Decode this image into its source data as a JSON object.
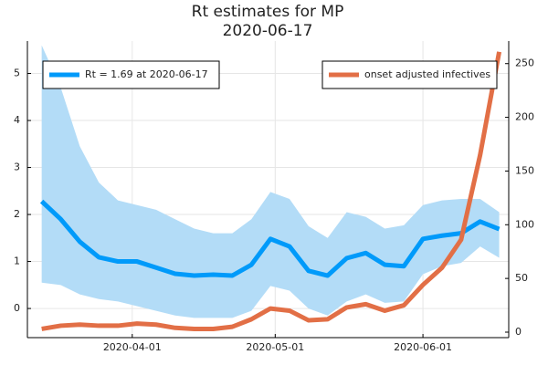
{
  "chart_data": {
    "type": "line",
    "title": "Rt estimates for MP",
    "subtitle": "2020-06-17",
    "x": [
      "2020-03-13",
      "2020-03-17",
      "2020-03-21",
      "2020-03-25",
      "2020-03-29",
      "2020-04-02",
      "2020-04-06",
      "2020-04-10",
      "2020-04-14",
      "2020-04-18",
      "2020-04-22",
      "2020-04-26",
      "2020-04-30",
      "2020-05-04",
      "2020-05-08",
      "2020-05-12",
      "2020-05-16",
      "2020-05-20",
      "2020-05-24",
      "2020-05-28",
      "2020-06-01",
      "2020-06-05",
      "2020-06-09",
      "2020-06-13",
      "2020-06-17"
    ],
    "band": {
      "color": "#b3dcf7",
      "upper": [
        5.6,
        4.7,
        3.45,
        2.68,
        2.3,
        2.2,
        2.1,
        1.9,
        1.7,
        1.6,
        1.6,
        1.9,
        2.48,
        2.33,
        1.75,
        1.5,
        2.05,
        1.95,
        1.7,
        1.77,
        2.2,
        2.3,
        2.33,
        2.33,
        2.05
      ],
      "lower": [
        0.55,
        0.5,
        0.3,
        0.2,
        0.15,
        0.05,
        -0.05,
        -0.15,
        -0.2,
        -0.2,
        -0.2,
        -0.05,
        0.48,
        0.38,
        0,
        -0.15,
        0.15,
        0.3,
        0.12,
        0.15,
        0.73,
        0.9,
        0.97,
        1.32,
        1.08
      ]
    },
    "series": [
      {
        "name": "Rt = 1.69 at 2020-06-17",
        "color": "#009afa",
        "values": [
          2.28,
          1.9,
          1.42,
          1.09,
          1.0,
          1.0,
          0.87,
          0.74,
          0.7,
          0.72,
          0.7,
          0.93,
          1.48,
          1.32,
          0.8,
          0.7,
          1.07,
          1.18,
          0.93,
          0.9,
          1.48,
          1.55,
          1.6,
          1.85,
          1.69
        ]
      },
      {
        "name": "onset adjusted infectives",
        "color": "#e26f46",
        "axis": "y2",
        "values": [
          3,
          6,
          7,
          6,
          6,
          8,
          7,
          4,
          3,
          3,
          5,
          12,
          22,
          20,
          11,
          12,
          23,
          26,
          20,
          25,
          44,
          60,
          86,
          165,
          261
        ]
      }
    ],
    "xlim": [
      "2020-03-10",
      "2020-06-19"
    ],
    "xticks": [
      "2020-04-01",
      "2020-05-01",
      "2020-06-01"
    ],
    "ylim": [
      -0.62,
      5.69
    ],
    "yticks": [
      0,
      1,
      2,
      3,
      4,
      5
    ],
    "y2lim": [
      -5.1,
      271
    ],
    "y2ticks": [
      0,
      50,
      100,
      150,
      200,
      250
    ],
    "grid": true
  }
}
